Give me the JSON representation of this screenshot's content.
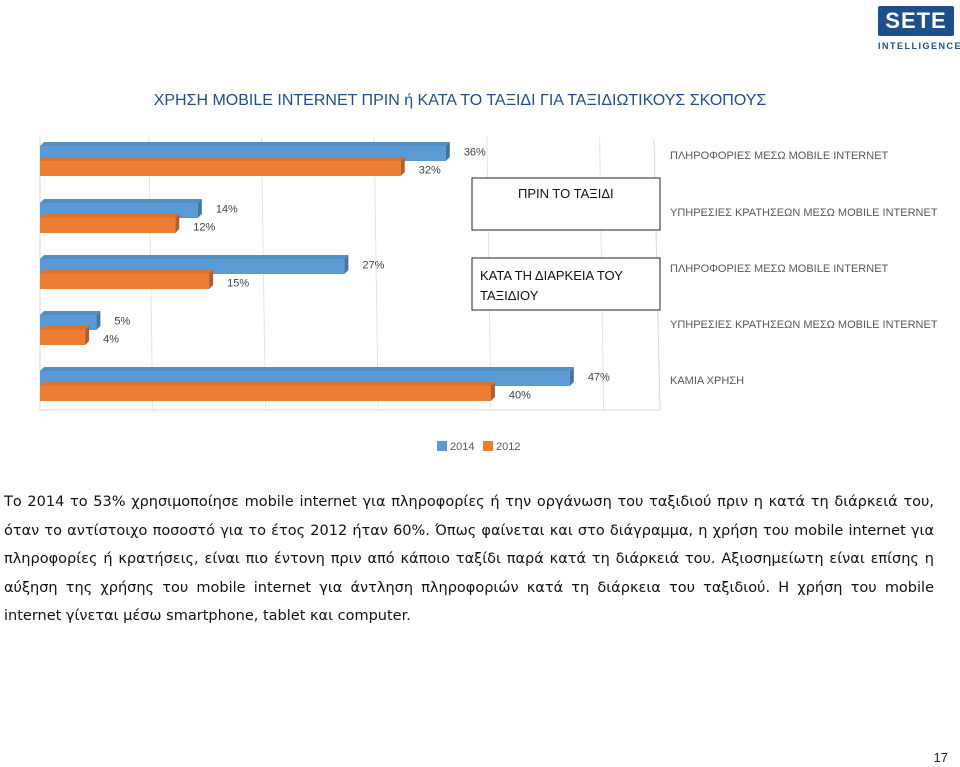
{
  "logo": {
    "brand": "SETE",
    "sub": "INTELLIGENCE"
  },
  "chart_data": {
    "type": "bar",
    "title": "ΧΡΗΣΗ MOBILE INTERNET ΠΡΙΝ ή ΚΑΤΑ ΤΟ ΤΑΞΙΔΙ ΓΙΑ ΤΑΞΙΔΙΩΤΙΚΟΥΣ ΣΚΟΠΟΥΣ",
    "orientation": "horizontal",
    "categories": [
      "ΠΛΗΡΟΦΟΡΙΕΣ ΜΕΣΩ MOBILE INTERNET",
      "ΥΠΗΡΕΣΙΕΣ ΚΡΑΤΗΣΕΩΝ ΜΕΣΩ MOBILE INTERNET",
      "ΠΛΗΡΟΦΟΡΙΕΣ ΜΕΣΩ MOBILE INTERNET",
      "ΥΠΗΡΕΣΙΕΣ ΚΡΑΤΗΣΕΩΝ ΜΕΣΩ MOBILE INTERNET",
      "ΚΑΜΙΑ ΧΡΗΣΗ"
    ],
    "series": [
      {
        "name": "2014",
        "color": "#5b9bd5",
        "values": [
          36,
          14,
          27,
          5,
          47
        ]
      },
      {
        "name": "2012",
        "color": "#ed7d31",
        "values": [
          32,
          12,
          15,
          4,
          40
        ]
      }
    ],
    "value_labels": {
      "2014": [
        "36%",
        "14%",
        "27%",
        "5%",
        "47%"
      ],
      "2012": [
        "32%",
        "12%",
        "15%",
        "4%",
        "40%"
      ]
    },
    "group_labels": [
      {
        "text": "ΠΡΙΝ ΤΟ ΤΑΞΙΔΙ",
        "rows": [
          0,
          1
        ]
      },
      {
        "text": "ΚΑΤΑ ΤΗ ΔΙΑΡΚΕΙΑ ΤΟΥ ΤΑΞΙΔΙΟΥ",
        "rows": [
          2,
          3
        ]
      }
    ],
    "xlim": [
      0,
      55
    ],
    "legend": "bottom",
    "grid": true
  },
  "body_text": "Το 2014 το 53% χρησιμοποίησε mobile internet για πληροφορίες ή την οργάνωση του ταξιδιού πριν η κατά τη διάρκειά του, όταν το αντίστοιχο ποσοστό για το έτος 2012 ήταν 60%. Όπως φαίνεται και στο διάγραμμα, η χρήση του mobile internet για πληροφορίες ή κρατήσεις, είναι πιο έντονη πριν από κάποιο ταξίδι παρά κατά τη διάρκειά του. Αξιοσημείωτη είναι επίσης η αύξηση της χρήσης του mobile internet για άντληση πληροφοριών κατά τη διάρκεια του ταξιδιού. Η χρήση του mobile internet γίνεται μέσω smartphone, tablet και computer.",
  "page_number": "17"
}
